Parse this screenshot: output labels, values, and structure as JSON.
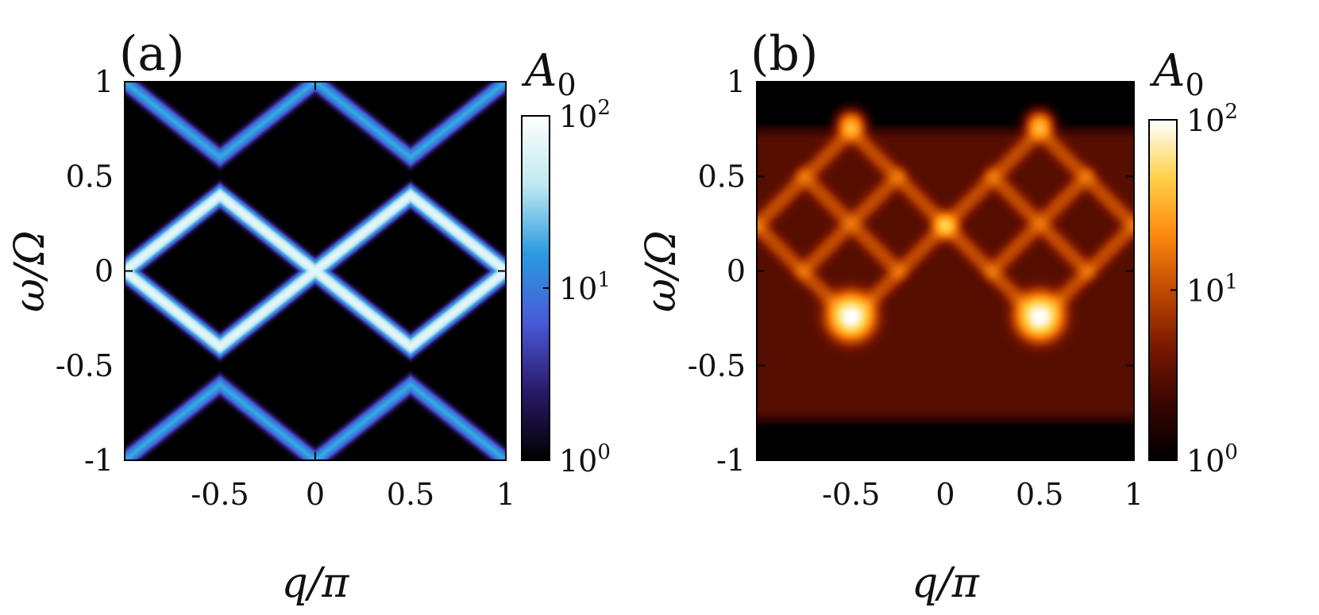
{
  "chart_data": [
    {
      "panel_label": "(a)",
      "type": "heatmap",
      "title": "",
      "xlabel": "q/π",
      "ylabel": "ω/Ω",
      "colorbar_label": "A",
      "colorbar_subscript": "0",
      "colorbar_scale": "log",
      "colorbar_range": [
        1,
        100
      ],
      "colorbar_ticks": [
        {
          "value": 1,
          "base": "10",
          "exp": "0"
        },
        {
          "value": 10,
          "base": "10",
          "exp": "1"
        },
        {
          "value": 100,
          "base": "10",
          "exp": "2"
        }
      ],
      "colormap": [
        "#000000",
        "#2a1a6a",
        "#4a5ad8",
        "#2a9be0",
        "#bfe8f0",
        "#ffffff"
      ],
      "xlim": [
        -1,
        1
      ],
      "ylim": [
        -1,
        1
      ],
      "xticks": [
        -0.5,
        0,
        0.5,
        1
      ],
      "xtick_labels": [
        "-0.5",
        "0",
        "0.5",
        "1"
      ],
      "yticks": [
        1,
        0.5,
        0,
        -0.5,
        -1
      ],
      "ytick_labels": [
        "1",
        "0.5",
        "0",
        "-0.5",
        "-1"
      ],
      "bands": [
        {
          "name": "upper band",
          "q": [
            -1,
            -0.5,
            0,
            0.5,
            1
          ],
          "omega": [
            1,
            0.6,
            1,
            0.6,
            1
          ],
          "peak": 18
        },
        {
          "name": "central band 1",
          "q": [
            -1,
            -0.5,
            0,
            0.5,
            1
          ],
          "omega": [
            0,
            0.4,
            0,
            0.4,
            0
          ],
          "peak": 70
        },
        {
          "name": "central band 2",
          "q": [
            -1,
            -0.5,
            0,
            0.5,
            1
          ],
          "omega": [
            0,
            -0.4,
            0,
            -0.4,
            0
          ],
          "peak": 70
        },
        {
          "name": "lower band",
          "q": [
            -1,
            -0.5,
            0,
            0.5,
            1
          ],
          "omega": [
            -1,
            -0.6,
            -1,
            -0.6,
            -1
          ],
          "peak": 18
        }
      ]
    },
    {
      "panel_label": "(b)",
      "type": "heatmap",
      "title": "",
      "xlabel": "q/π",
      "ylabel": "ω/Ω",
      "colorbar_label": "A",
      "colorbar_subscript": "0",
      "colorbar_scale": "log",
      "colorbar_range": [
        1,
        100
      ],
      "colorbar_ticks": [
        {
          "value": 1,
          "base": "10",
          "exp": "0"
        },
        {
          "value": 10,
          "base": "10",
          "exp": "1"
        },
        {
          "value": 100,
          "base": "10",
          "exp": "2"
        }
      ],
      "colormap": [
        "#000000",
        "#3a0600",
        "#7a1800",
        "#c04a00",
        "#ff8a10",
        "#ffd24a",
        "#ffffff"
      ],
      "xlim": [
        -1,
        1
      ],
      "ylim": [
        -1,
        1
      ],
      "xticks": [
        -0.5,
        0,
        0.5,
        1
      ],
      "xtick_labels": [
        "-0.5",
        "0",
        "0.5",
        "1"
      ],
      "yticks": [
        1,
        0.5,
        0,
        -0.5,
        -1
      ],
      "ytick_labels": [
        "1",
        "0.5",
        "0",
        "-0.5",
        "-1"
      ],
      "background_region": {
        "q": [
          -1,
          1
        ],
        "omega": [
          -0.82,
          0.78
        ],
        "level": 3
      },
      "features": [
        {
          "name": "bright spot left",
          "q": -0.5,
          "omega": -0.24,
          "peak": 90
        },
        {
          "name": "bright spot right",
          "q": 0.5,
          "omega": -0.24,
          "peak": 90
        },
        {
          "name": "top spot left",
          "q": -0.5,
          "omega": 0.77,
          "peak": 25
        },
        {
          "name": "top spot right",
          "q": 0.5,
          "omega": 0.77,
          "peak": 25
        },
        {
          "name": "crossing center",
          "q": 0,
          "omega": 0.24,
          "peak": 18
        }
      ],
      "ridges": [
        {
          "name": "ridge up-right",
          "q": [
            -1,
            -0.5
          ],
          "omega": [
            0.24,
            0.74
          ]
        },
        {
          "name": "ridge up-left",
          "q": [
            -0.5,
            0
          ],
          "omega": [
            0.74,
            0.24
          ]
        },
        {
          "name": "ridge up-right 2",
          "q": [
            0,
            0.5
          ],
          "omega": [
            0.24,
            0.74
          ]
        },
        {
          "name": "ridge up-left 2",
          "q": [
            0.5,
            1
          ],
          "omega": [
            0.74,
            0.24
          ]
        },
        {
          "name": "ridge down-right",
          "q": [
            -1,
            -0.5
          ],
          "omega": [
            0.24,
            -0.26
          ]
        },
        {
          "name": "ridge down-left",
          "q": [
            -0.5,
            0
          ],
          "omega": [
            -0.26,
            0.24
          ]
        },
        {
          "name": "ridge down-right 2",
          "q": [
            0,
            0.5
          ],
          "omega": [
            0.24,
            -0.26
          ]
        },
        {
          "name": "ridge down-left 2",
          "q": [
            0.5,
            1
          ],
          "omega": [
            -0.26,
            0.24
          ]
        },
        {
          "name": "inner ridge a",
          "q": [
            -0.75,
            -0.25
          ],
          "omega": [
            0.5,
            0.0
          ]
        },
        {
          "name": "inner ridge b",
          "q": [
            -0.75,
            -0.25
          ],
          "omega": [
            0.0,
            0.5
          ]
        },
        {
          "name": "inner ridge c",
          "q": [
            0.25,
            0.75
          ],
          "omega": [
            0.5,
            0.0
          ]
        },
        {
          "name": "inner ridge d",
          "q": [
            0.25,
            0.75
          ],
          "omega": [
            0.0,
            0.5
          ]
        }
      ]
    }
  ]
}
